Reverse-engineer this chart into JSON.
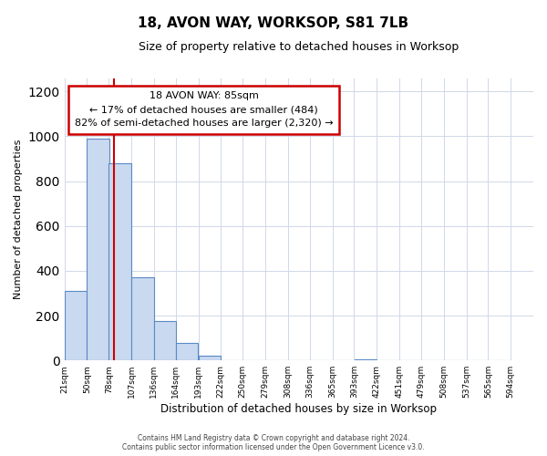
{
  "title": "18, AVON WAY, WORKSOP, S81 7LB",
  "subtitle": "Size of property relative to detached houses in Worksop",
  "xlabel": "Distribution of detached houses by size in Worksop",
  "ylabel": "Number of detached properties",
  "bar_left_edges": [
    21,
    50,
    78,
    107,
    136,
    164,
    193,
    222,
    250,
    279,
    308,
    336,
    365,
    393,
    422,
    451,
    479,
    508,
    537,
    565
  ],
  "bar_heights": [
    310,
    990,
    880,
    370,
    175,
    80,
    20,
    0,
    0,
    0,
    0,
    0,
    0,
    5,
    0,
    0,
    0,
    0,
    0,
    0
  ],
  "bin_width": 29,
  "bar_color": "#c9d9f0",
  "bar_edgecolor": "#5a8ac6",
  "property_line_x": 85,
  "annotation_line1": "18 AVON WAY: 85sqm",
  "annotation_line2": "← 17% of detached houses are smaller (484)",
  "annotation_line3": "82% of semi-detached houses are larger (2,320) →",
  "annotation_box_edgecolor": "#cc0000",
  "property_line_color": "#cc0000",
  "ylim": [
    0,
    1260
  ],
  "tick_labels": [
    "21sqm",
    "50sqm",
    "78sqm",
    "107sqm",
    "136sqm",
    "164sqm",
    "193sqm",
    "222sqm",
    "250sqm",
    "279sqm",
    "308sqm",
    "336sqm",
    "365sqm",
    "393sqm",
    "422sqm",
    "451sqm",
    "479sqm",
    "508sqm",
    "537sqm",
    "565sqm",
    "594sqm"
  ],
  "tick_positions": [
    21,
    50,
    78,
    107,
    136,
    164,
    193,
    222,
    250,
    279,
    308,
    336,
    365,
    393,
    422,
    451,
    479,
    508,
    537,
    565,
    594
  ],
  "footer_text": "Contains HM Land Registry data © Crown copyright and database right 2024.\nContains public sector information licensed under the Open Government Licence v3.0.",
  "background_color": "#ffffff",
  "grid_color": "#d0d8e8"
}
